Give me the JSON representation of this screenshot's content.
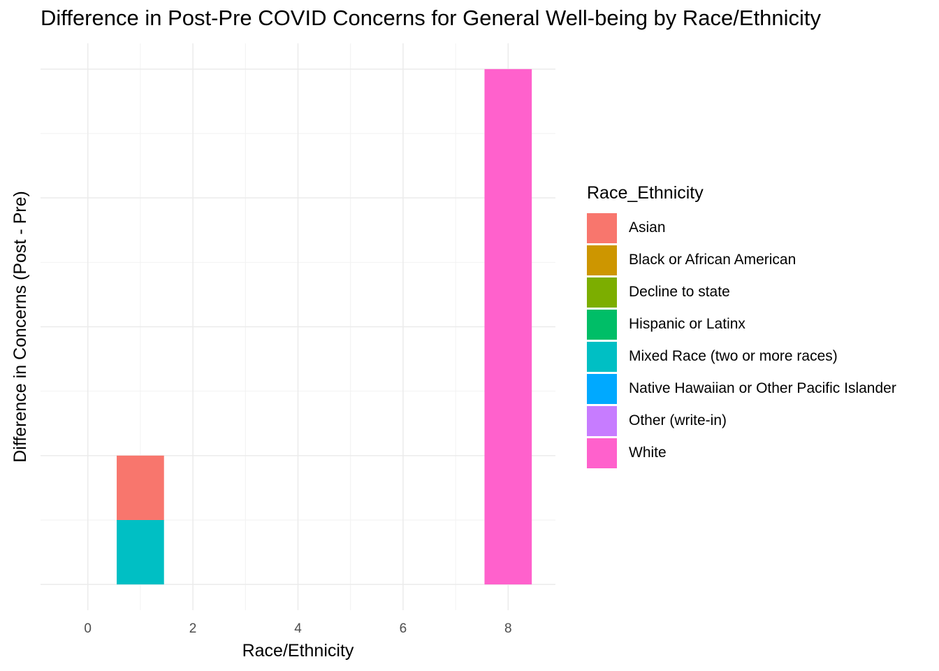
{
  "chart_data": {
    "type": "bar",
    "stacked": true,
    "title": "Difference in Post-Pre COVID Concerns for General Well-being by Race/Ethnicity",
    "xlabel": "Race/Ethnicity",
    "ylabel": "Difference in Concerns (Post - Pre)",
    "x_ticks": [
      "0",
      "2",
      "4",
      "6",
      "8"
    ],
    "xlim": [
      -0.9,
      8.9
    ],
    "ylim": [
      -0.4,
      8.4
    ],
    "y_ticks_shown": false,
    "grid": true,
    "legend_position": "right",
    "legend_title": "Race_Ethnicity",
    "series": [
      {
        "name": "Asian",
        "color": "#F8766D",
        "points": [
          {
            "x": 1,
            "y": 1
          }
        ]
      },
      {
        "name": "Black or African American",
        "color": "#CD9600",
        "points": []
      },
      {
        "name": "Decline to state",
        "color": "#7CAE00",
        "points": []
      },
      {
        "name": "Hispanic or Latinx",
        "color": "#00BE67",
        "points": []
      },
      {
        "name": "Mixed Race (two or more races)",
        "color": "#00BFC4",
        "points": [
          {
            "x": 1,
            "y": 1
          }
        ]
      },
      {
        "name": "Native Hawaiian or Other Pacific Islander",
        "color": "#00A9FF",
        "points": []
      },
      {
        "name": "Other (write-in)",
        "color": "#C77CFF",
        "points": []
      },
      {
        "name": "White",
        "color": "#FF61CC",
        "points": [
          {
            "x": 8,
            "y": 8
          }
        ]
      }
    ]
  }
}
